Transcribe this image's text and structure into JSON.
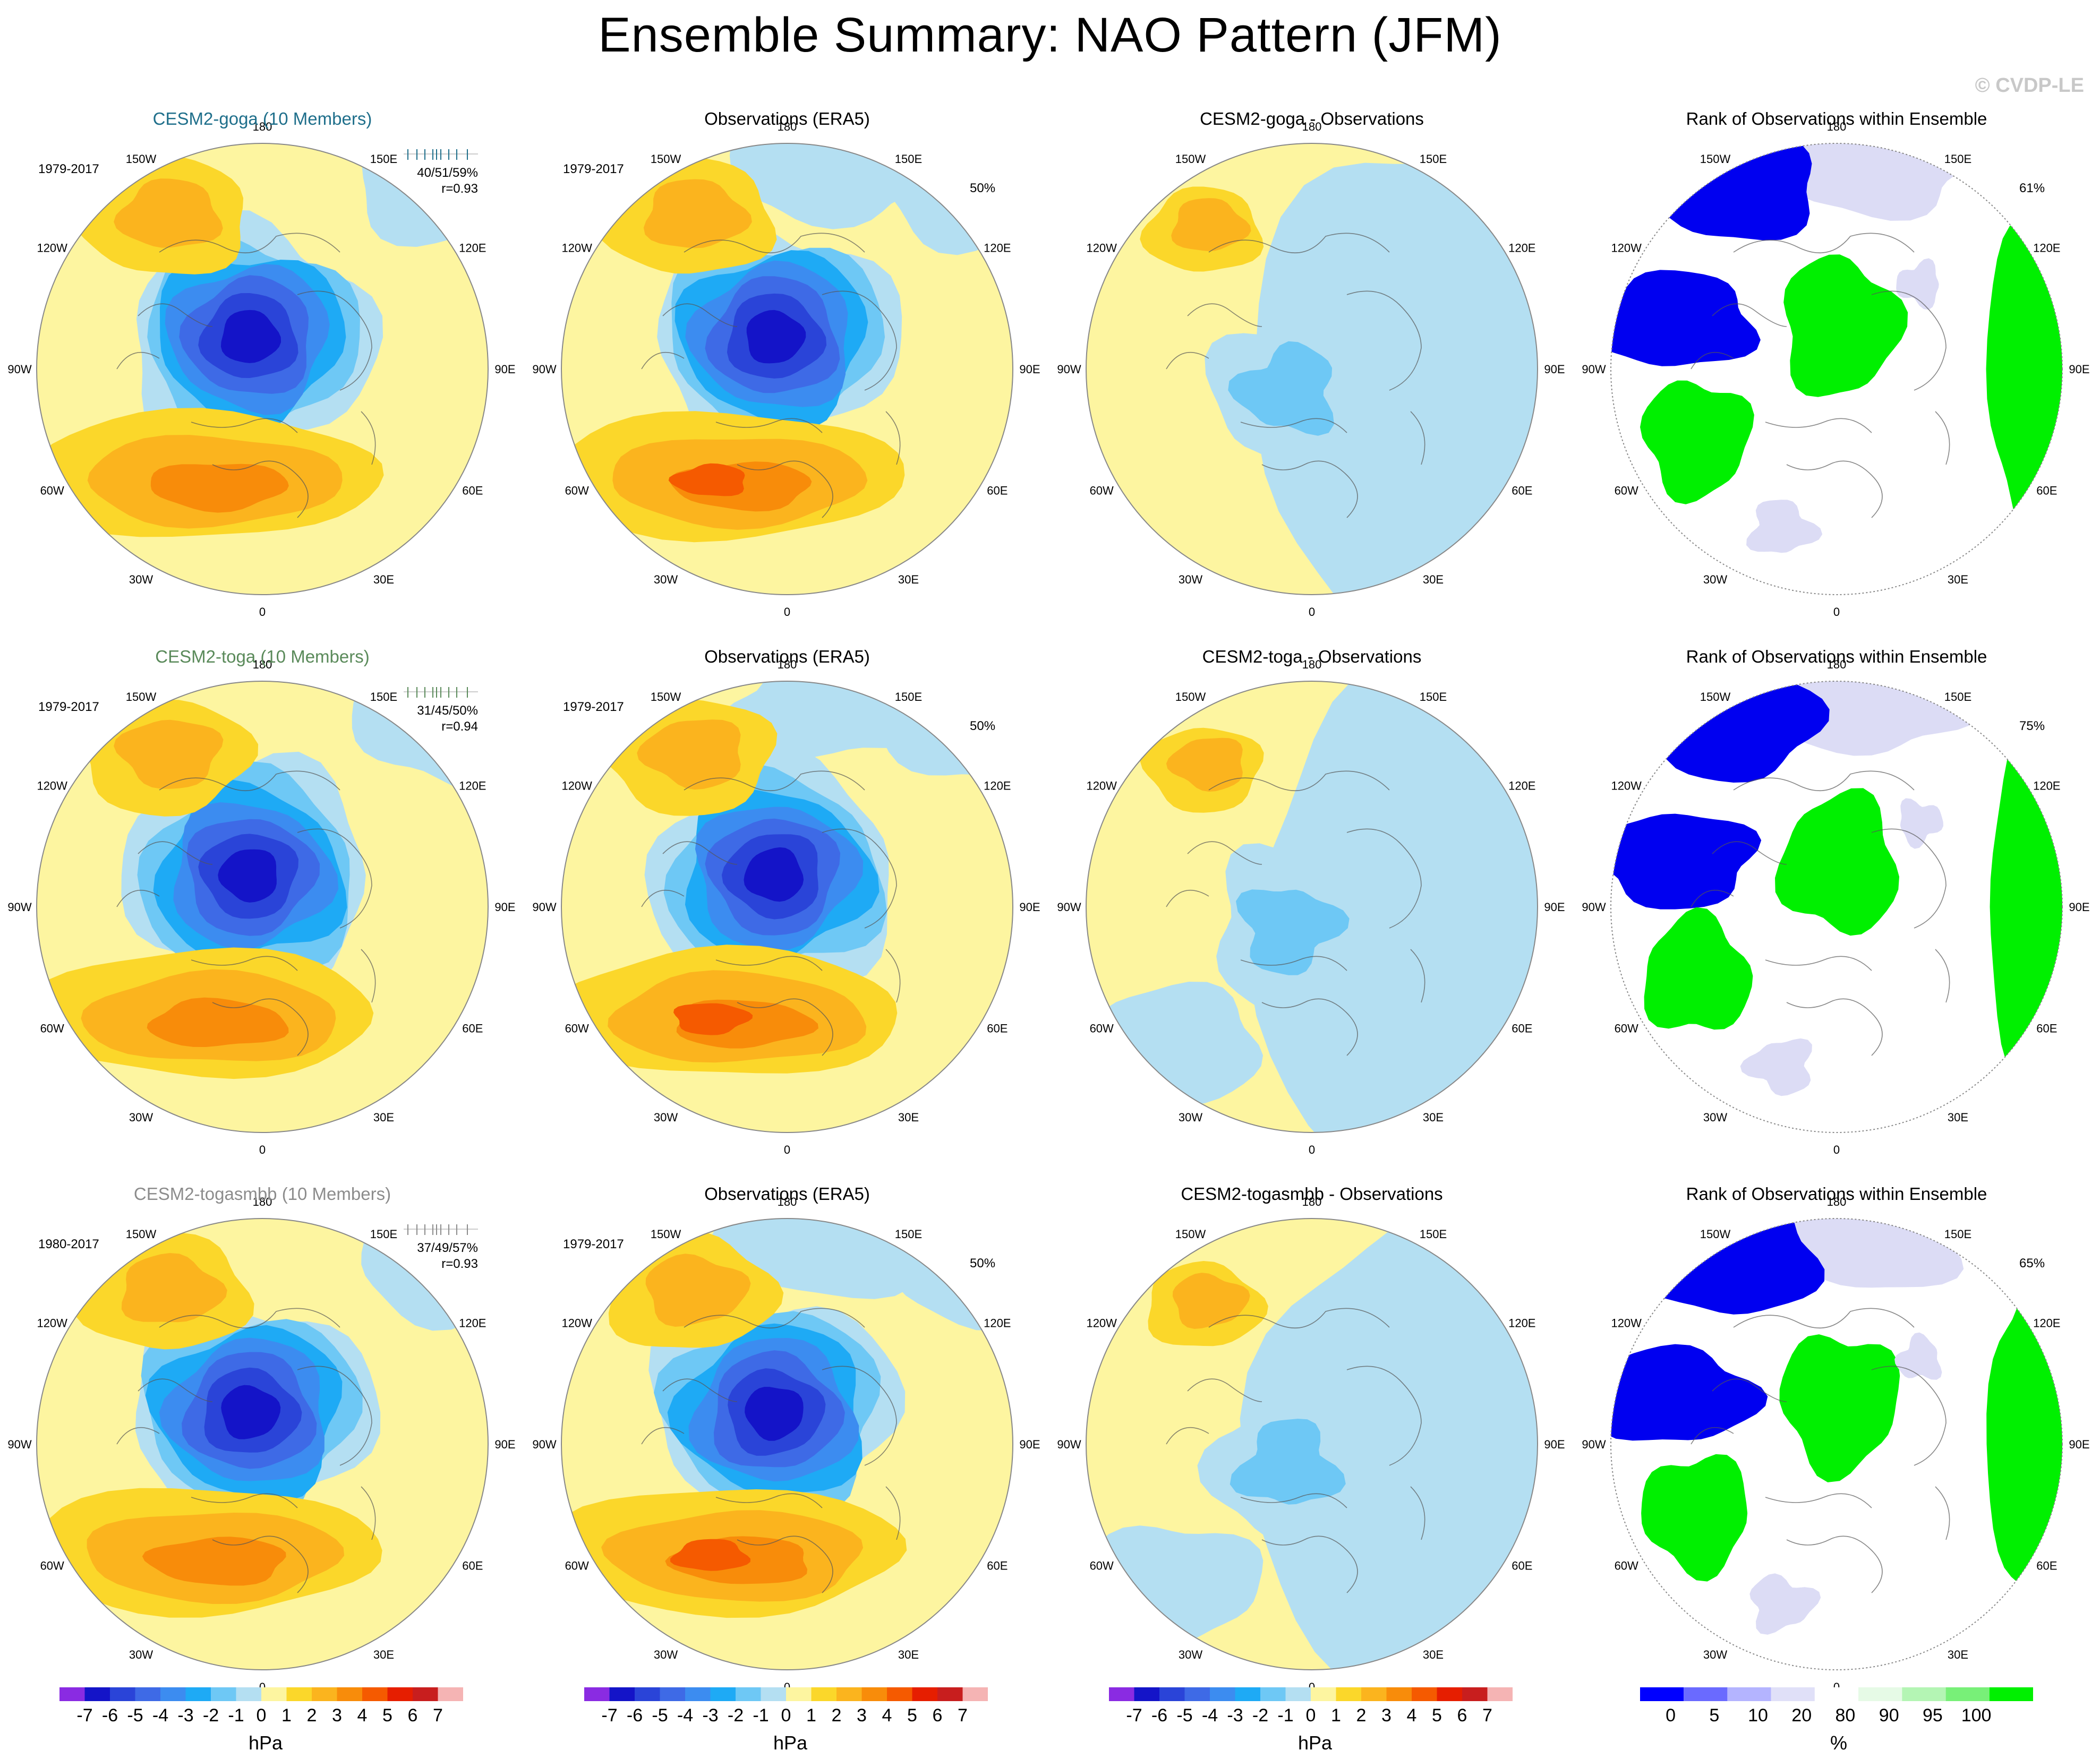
{
  "title": "Ensemble Summary: NAO Pattern (JFM)",
  "credit": "© CVDP-LE",
  "longitude_labels": [
    "180",
    "150E",
    "120E",
    "90E",
    "60E",
    "30E",
    "0",
    "30W",
    "60W",
    "90W",
    "120W",
    "150W"
  ],
  "rows": [
    {
      "model": {
        "title": "CESM2-goga (10 Members)",
        "title_color": "#1f6f8b",
        "period": "1979-2017",
        "stats": "40/51/59%",
        "corr": "r=0.93"
      },
      "obs": {
        "title": "Observations (ERA5)",
        "period": "1979-2017",
        "pct": "50%"
      },
      "diff": {
        "title": "CESM2-goga - Observations"
      },
      "rank": {
        "title": "Rank of Observations within Ensemble",
        "pct": "61%"
      }
    },
    {
      "model": {
        "title": "CESM2-toga (10 Members)",
        "title_color": "#5a8a5a",
        "period": "1979-2017",
        "stats": "31/45/50%",
        "corr": "r=0.94"
      },
      "obs": {
        "title": "Observations (ERA5)",
        "period": "1979-2017",
        "pct": "50%"
      },
      "diff": {
        "title": "CESM2-toga - Observations"
      },
      "rank": {
        "title": "Rank of Observations within Ensemble",
        "pct": "75%"
      }
    },
    {
      "model": {
        "title": "CESM2-togasmbb (10 Members)",
        "title_color": "#8c8c8c",
        "period": "1980-2017",
        "stats": "37/49/57%",
        "corr": "r=0.93"
      },
      "obs": {
        "title": "Observations (ERA5)",
        "period": "1979-2017",
        "pct": "50%"
      },
      "diff": {
        "title": "CESM2-togasmbb - Observations"
      },
      "rank": {
        "title": "Rank of Observations within Ensemble",
        "pct": "65%"
      }
    }
  ],
  "colorbar_hpa": {
    "unit": "hPa",
    "labels": [
      "-7",
      "-6",
      "-5",
      "-4",
      "-3",
      "-2",
      "-1",
      "0",
      "1",
      "2",
      "3",
      "4",
      "5",
      "6",
      "7"
    ],
    "colors": [
      "#8a2be2",
      "#1414c8",
      "#2a44d8",
      "#3e6ae6",
      "#3c8cf0",
      "#1eaaf5",
      "#6ec8f5",
      "#b4dff2",
      "#fdf5a0",
      "#fbd72a",
      "#fbb41e",
      "#f88c0a",
      "#f55a00",
      "#e61e00",
      "#c81e1e",
      "#f5b4b4"
    ]
  },
  "colorbar_rank": {
    "unit": "%",
    "labels": [
      "0",
      "5",
      "10",
      "20",
      "80",
      "90",
      "95",
      "100"
    ],
    "colors": [
      "#0000ff",
      "#6a6aff",
      "#b4b4ff",
      "#e0e0f8",
      "#ffffff",
      "#e6fae6",
      "#b4f5b4",
      "#78f078",
      "#00f000"
    ]
  },
  "palette": {
    "background_pos": "#fdf5a0",
    "background_neg": "#b4dff2",
    "rank_low": "#0000f0",
    "rank_high": "#00f000",
    "rank_midlow": "#dcdcf5",
    "rank_midhigh": "#e6fae6"
  }
}
